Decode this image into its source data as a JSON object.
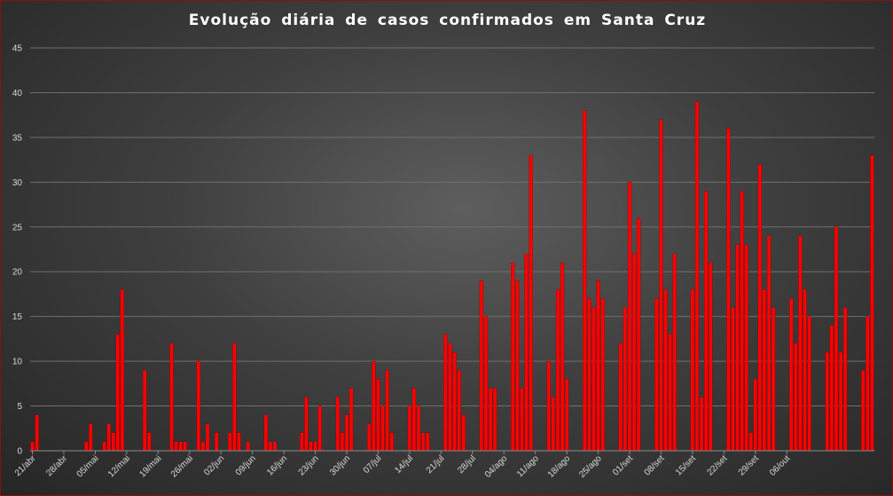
{
  "chart_data": {
    "type": "bar",
    "title": "Evolução  diária  de casos  confirmados  em Santa  Cruz",
    "xlabel": "",
    "ylabel": "",
    "ylim": [
      0,
      45
    ],
    "yticks": [
      0,
      5,
      10,
      15,
      20,
      25,
      30,
      35,
      40,
      45
    ],
    "grid": true,
    "legend": "none",
    "bar_color": "#ff0000",
    "start_date": "21/abr",
    "x_tick_labels": [
      "21/abr",
      "28/abr",
      "05/mai",
      "12/mai",
      "19/mai",
      "26/mai",
      "02/jun",
      "09/jun",
      "16/jun",
      "23/jun",
      "30/jun",
      "07/jul",
      "14/jul",
      "21/jul",
      "28/jul",
      "04/ago",
      "11/ago",
      "18/ago",
      "25/ago",
      "01/set",
      "08/set",
      "15/set",
      "22/set",
      "29/set",
      "06/out"
    ],
    "values": [
      1,
      4,
      0,
      0,
      0,
      0,
      0,
      0,
      0,
      0,
      0,
      0,
      1,
      3,
      0,
      0,
      1,
      3,
      2,
      13,
      18,
      0,
      0,
      0,
      0,
      9,
      2,
      0,
      0,
      0,
      0,
      12,
      1,
      1,
      1,
      0,
      0,
      10,
      1,
      3,
      0,
      2,
      0,
      0,
      2,
      12,
      2,
      0,
      1,
      0,
      0,
      0,
      4,
      1,
      1,
      0,
      0,
      0,
      0,
      0,
      2,
      6,
      1,
      1,
      5,
      0,
      0,
      0,
      6,
      2,
      4,
      7,
      0,
      0,
      0,
      3,
      10,
      8,
      5,
      9,
      2,
      0,
      0,
      0,
      5,
      7,
      5,
      2,
      2,
      0,
      0,
      0,
      13,
      12,
      11,
      9,
      4,
      0,
      0,
      0,
      19,
      15,
      7,
      7,
      0,
      0,
      0,
      21,
      19,
      7,
      22,
      33,
      0,
      0,
      0,
      10,
      6,
      18,
      21,
      8,
      0,
      0,
      0,
      38,
      17,
      16,
      19,
      17,
      0,
      0,
      0,
      12,
      16,
      30,
      22,
      26,
      0,
      0,
      0,
      17,
      37,
      18,
      13,
      22,
      0,
      0,
      0,
      18,
      39,
      6,
      29,
      21,
      0,
      0,
      0,
      36,
      16,
      23,
      29,
      23,
      2,
      8,
      32,
      18,
      24,
      16,
      0,
      0,
      0,
      17,
      12,
      24,
      18,
      15,
      0,
      0,
      0,
      11,
      14,
      25,
      11,
      16,
      0,
      0,
      0,
      9,
      15,
      33
    ]
  }
}
